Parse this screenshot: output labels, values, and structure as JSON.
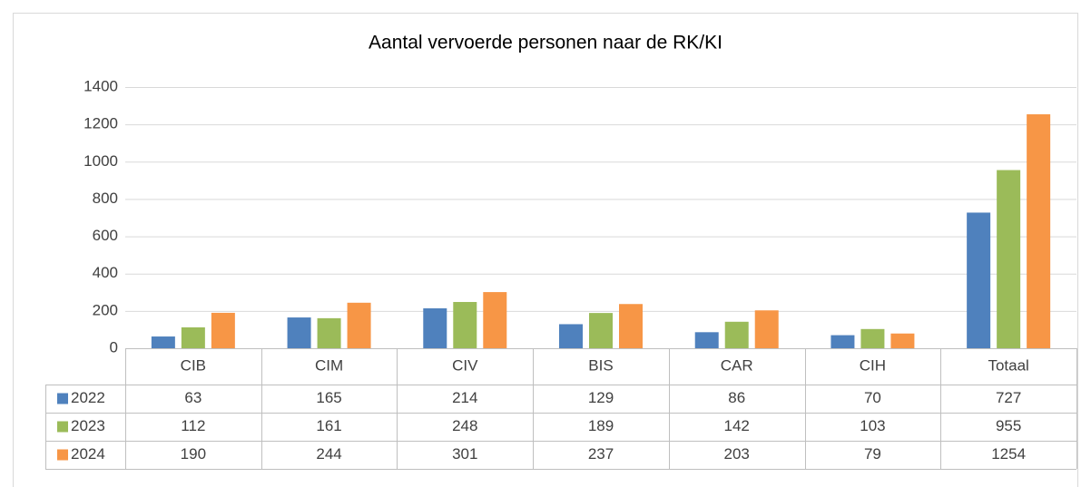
{
  "chart_data": {
    "type": "bar",
    "title": "Aantal vervoerde personen naar de RK/KI",
    "categories": [
      "CIB",
      "CIM",
      "CIV",
      "BIS",
      "CAR",
      "CIH",
      "Totaal"
    ],
    "series": [
      {
        "name": "2022",
        "color": "#4f81bd",
        "values": [
          63,
          165,
          214,
          129,
          86,
          70,
          727
        ]
      },
      {
        "name": "2023",
        "color": "#9bbb59",
        "values": [
          112,
          161,
          248,
          189,
          142,
          103,
          955
        ]
      },
      {
        "name": "2024",
        "color": "#f79646",
        "values": [
          190,
          244,
          301,
          237,
          203,
          79,
          1254
        ]
      }
    ],
    "ylim": [
      0,
      1400
    ],
    "yticks": [
      0,
      200,
      400,
      600,
      800,
      1000,
      1200,
      1400
    ],
    "grid": true
  }
}
